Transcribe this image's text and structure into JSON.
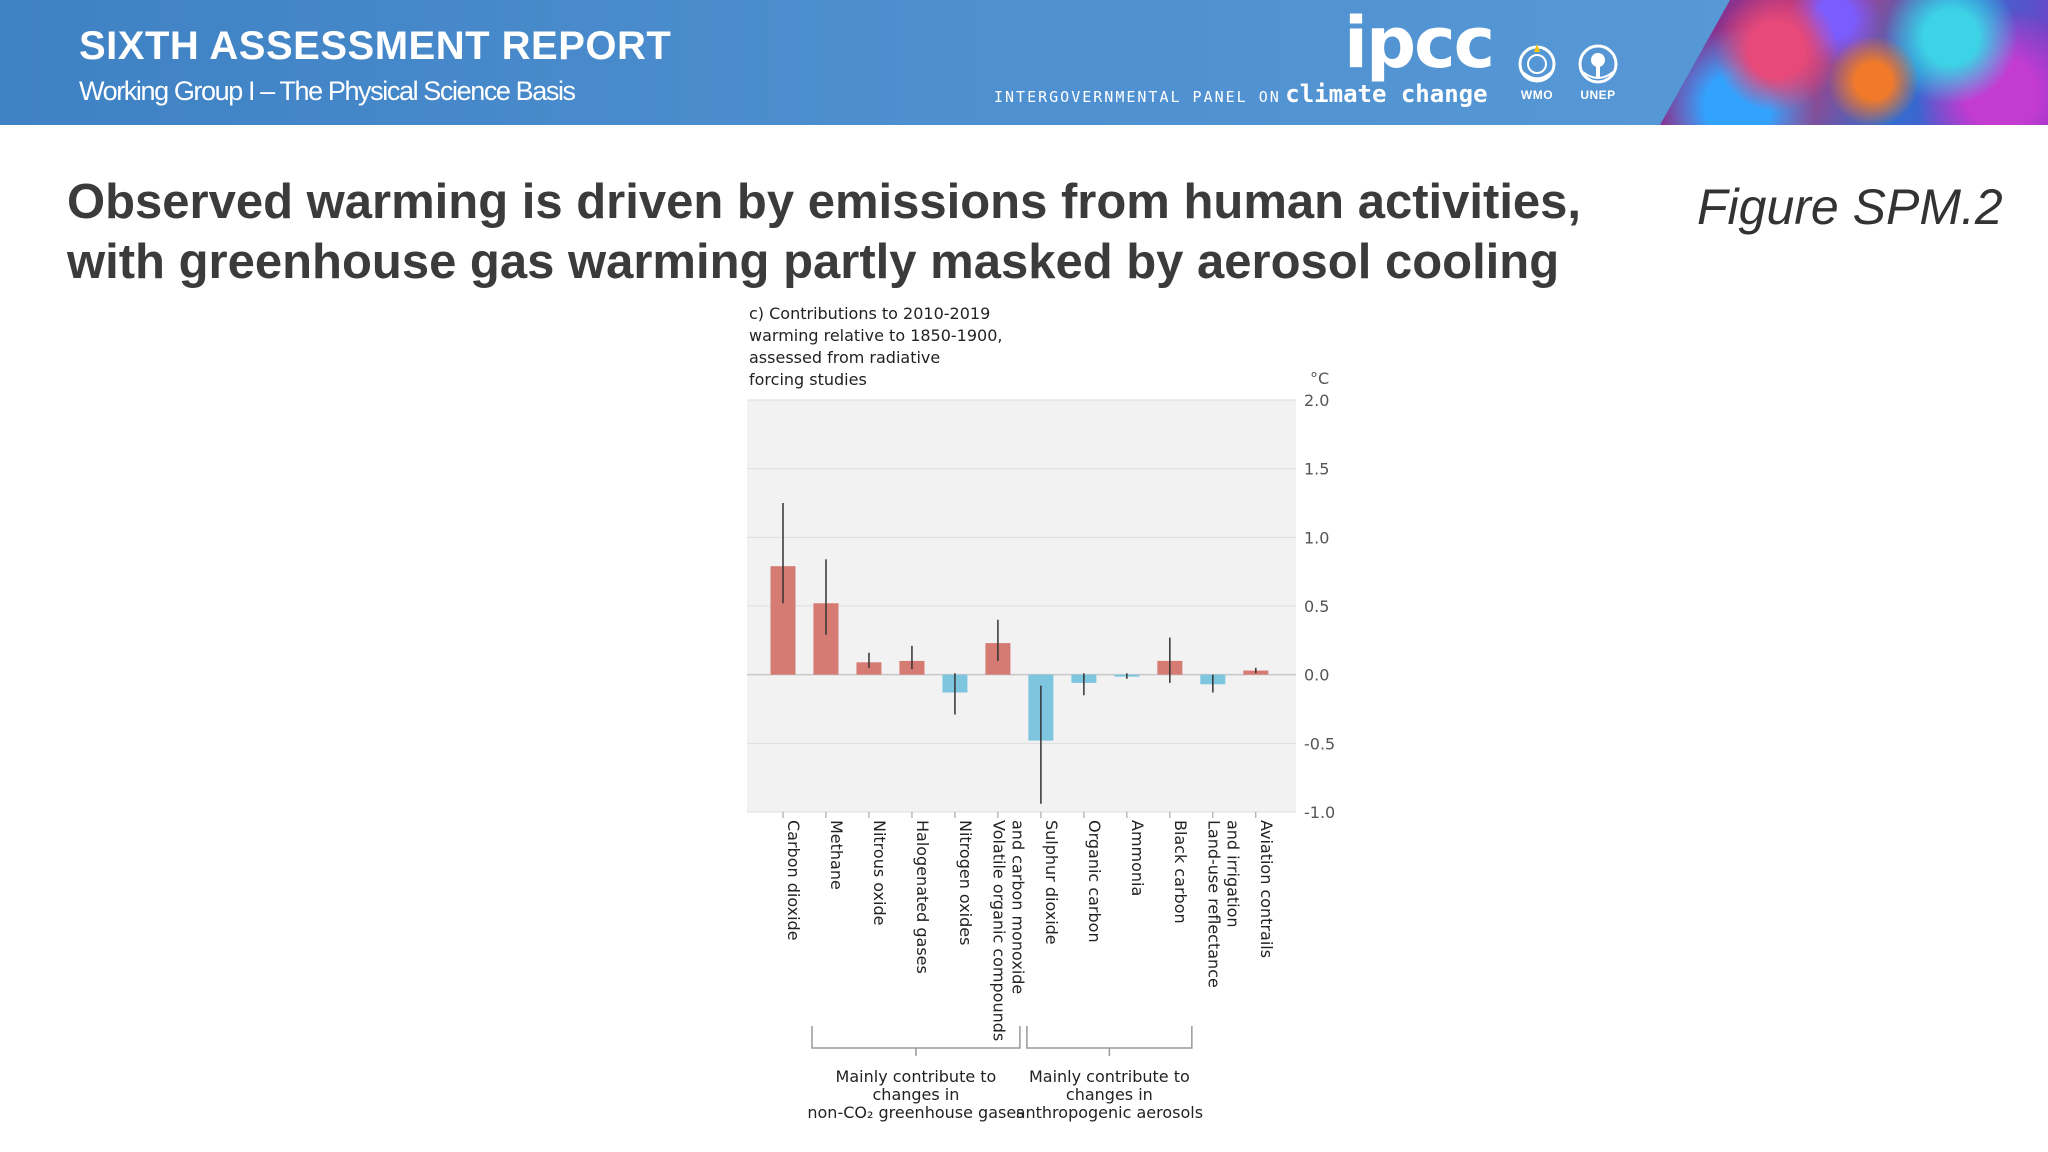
{
  "header": {
    "title": "SIXTH ASSESSMENT REPORT",
    "subtitle": "Working Group I – The Physical Science Basis",
    "logo_text": "ipcc",
    "tagline_small": "INTERGOVERNMENTAL PANEL ON",
    "tagline_big": "climate change",
    "partners": [
      "WMO",
      "UNEP"
    ],
    "banner_color": "#4a8bcd"
  },
  "slide": {
    "headline_line1": "Observed warming is driven by emissions from human activities,",
    "headline_line2": "with greenhouse gas warming partly masked by aerosol cooling",
    "figure_label": "Figure SPM.2"
  },
  "chart_data": {
    "type": "bar",
    "title_lines": [
      "c) Contributions to 2010-2019",
      "warming relative to 1850-1900,",
      "assessed from radiative",
      "forcing studies"
    ],
    "unit": "°C",
    "ylim": [
      -1.0,
      2.0
    ],
    "yticks": [
      2.0,
      1.5,
      1.0,
      0.5,
      0.0,
      -0.5,
      -1.0
    ],
    "ytick_labels": [
      "2.0",
      "1.5",
      "1.0",
      "0.5",
      "0.0",
      "-0.5",
      "-1.0"
    ],
    "grid": true,
    "positive_color": "#d67b73",
    "negative_color": "#7ec5df",
    "categories": [
      "Carbon dioxide",
      "Methane",
      "Nitrous oxide",
      "Halogenated gases",
      "Nitrogen oxides",
      "Volatile organic compounds and carbon monoxide",
      "Sulphur dioxide",
      "Organic carbon",
      "Ammonia",
      "Black carbon",
      "Land-use reflectance and irrigation",
      "Aviation contrails"
    ],
    "category_label_lines": [
      [
        "Carbon dioxide"
      ],
      [
        "Methane"
      ],
      [
        "Nitrous oxide"
      ],
      [
        "Halogenated gases"
      ],
      [
        "Nitrogen oxides"
      ],
      [
        "Volatile organic compounds",
        "and carbon monoxide"
      ],
      [
        "Sulphur dioxide"
      ],
      [
        "Organic carbon"
      ],
      [
        "Ammonia"
      ],
      [
        "Black carbon"
      ],
      [
        "Land-use reflectance",
        "and irrigation"
      ],
      [
        "Aviation contrails"
      ]
    ],
    "values": [
      0.79,
      0.52,
      0.09,
      0.1,
      -0.13,
      0.23,
      -0.48,
      -0.06,
      -0.01,
      0.1,
      -0.07,
      0.03
    ],
    "err_low": [
      0.52,
      0.29,
      0.05,
      0.04,
      -0.29,
      0.1,
      -0.94,
      -0.15,
      -0.03,
      -0.06,
      -0.13,
      0.01
    ],
    "err_high": [
      1.25,
      0.84,
      0.16,
      0.21,
      0.01,
      0.4,
      -0.08,
      0.01,
      0.01,
      0.27,
      0.0,
      0.05
    ],
    "groups": [
      {
        "label_lines": [
          "Mainly contribute to",
          "changes in",
          "non-CO₂ greenhouse gases"
        ],
        "from": 1,
        "to": 5
      },
      {
        "label_lines": [
          "Mainly contribute to",
          "changes in",
          "anthropogenic aerosols"
        ],
        "from": 6,
        "to": 9
      }
    ]
  }
}
